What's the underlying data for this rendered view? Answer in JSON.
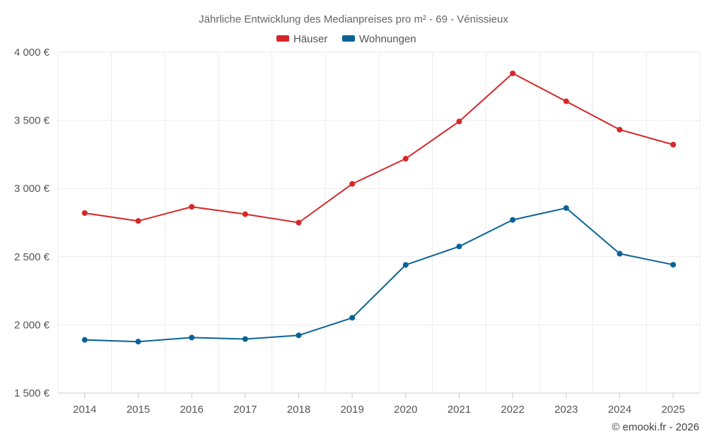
{
  "chart_data": {
    "type": "line",
    "title": "Jährliche Entwicklung des Medianpreises pro m² - 69 - Vénissieux",
    "categories": [
      "2014",
      "2015",
      "2016",
      "2017",
      "2018",
      "2019",
      "2020",
      "2021",
      "2022",
      "2023",
      "2024",
      "2025"
    ],
    "series": [
      {
        "name": "Häuser",
        "color": "#d62728",
        "values": [
          2820,
          2762,
          2866,
          2812,
          2750,
          3034,
          3219,
          3492,
          3845,
          3640,
          3432,
          3322
        ]
      },
      {
        "name": "Wohnungen",
        "color": "#0a6396",
        "values": [
          1890,
          1877,
          1907,
          1896,
          1923,
          2052,
          2440,
          2575,
          2770,
          2857,
          2522,
          2441
        ]
      }
    ],
    "yticks": [
      "1 500 €",
      "2 000 €",
      "2 500 €",
      "3 000 €",
      "3 500 €",
      "4 000 €"
    ],
    "ytick_values": [
      1500,
      2000,
      2500,
      3000,
      3500,
      4000
    ],
    "ylim": [
      1500,
      4000
    ],
    "xlabel": "",
    "ylabel": "",
    "grid": true,
    "legend_position": "top-center"
  },
  "credit": "© emooki.fr - 2026"
}
